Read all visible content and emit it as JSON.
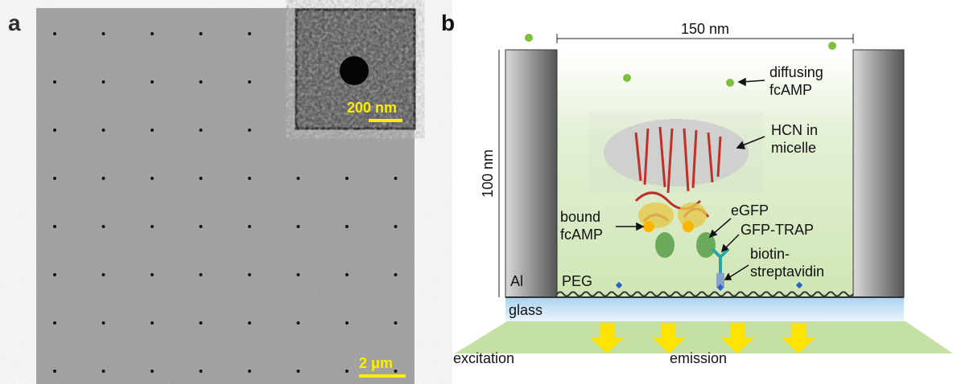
{
  "panel_a": {
    "label": "a",
    "inset_scale": "200 nm",
    "scale": "2 μm"
  },
  "panel_b": {
    "label": "b",
    "width": "150 nm",
    "height": "100 nm",
    "diffusing": [
      "diffusing",
      "fcAMP"
    ],
    "hcn": [
      "HCN in",
      "micelle"
    ],
    "egfp": "eGFP",
    "gfp_trap": "GFP-TRAP",
    "biotin": [
      "biotin-",
      "streptavidin"
    ],
    "bound": [
      "bound",
      "fcAMP"
    ],
    "al": "Al",
    "peg": "PEG",
    "glass": "glass",
    "excitation": "excitation",
    "emission": "emission"
  }
}
